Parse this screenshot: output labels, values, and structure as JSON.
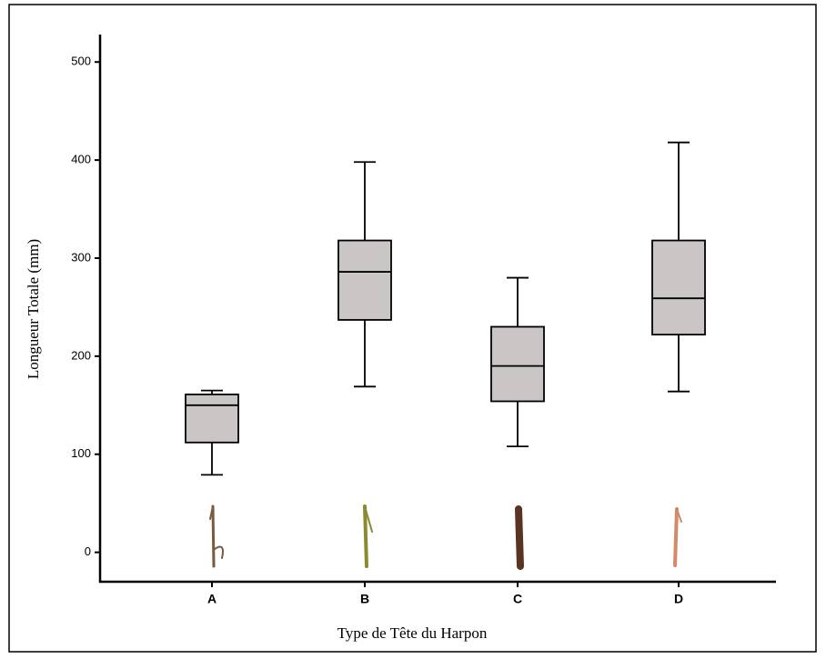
{
  "chart_data": {
    "type": "box",
    "x_label": "Type de Tête du Harpon",
    "y_label": "Longueur Totale (mm)",
    "categories": [
      "A",
      "B",
      "C",
      "D"
    ],
    "min": [
      79,
      169,
      108,
      164
    ],
    "q1": [
      112,
      237,
      154,
      222
    ],
    "median": [
      150,
      286,
      190,
      259
    ],
    "q3": [
      161,
      318,
      230,
      318
    ],
    "max": [
      165,
      398,
      280,
      418
    ],
    "color": "#cbc6c6",
    "ylim": [
      -30,
      528
    ],
    "yticks": [
      0,
      100,
      200,
      300,
      400,
      500
    ],
    "grid": false
  }
}
